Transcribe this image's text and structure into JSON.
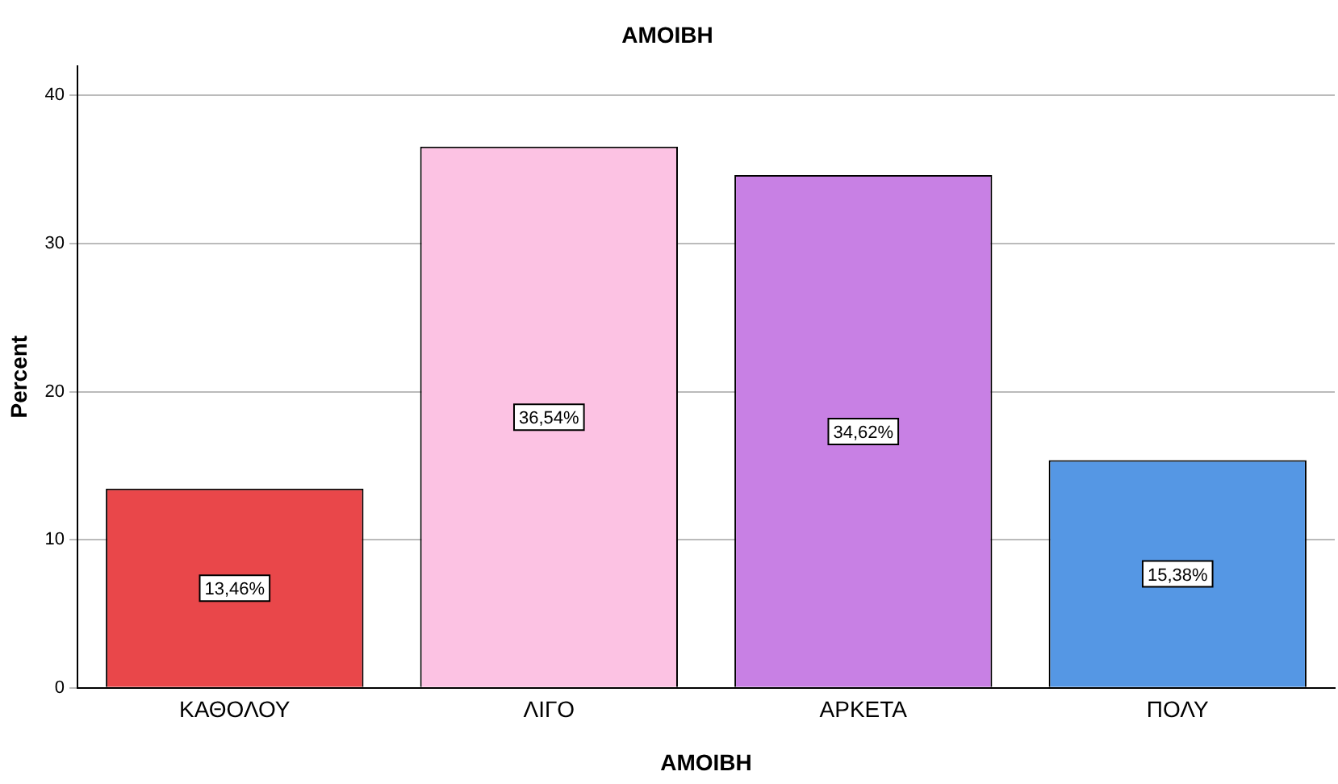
{
  "chart_data": {
    "type": "bar",
    "title": "ΑΜΟΙΒΗ",
    "xlabel": "ΑΜΟΙΒΗ",
    "ylabel": "Percent",
    "categories": [
      "ΚΑΘΟΛΟΥ",
      "ΛΙΓΟ",
      "ΑΡΚΕΤΑ",
      "ΠΟΛΥ"
    ],
    "values": [
      13.46,
      36.54,
      34.62,
      15.38
    ],
    "colors": [
      "#e9474a",
      "#fcc2e3",
      "#c880e4",
      "#5597e4"
    ],
    "value_labels": [
      "13,46%",
      "36,54%",
      "34,62%",
      "15,38%"
    ],
    "ylim": [
      0,
      42
    ],
    "yticks": [
      0,
      10,
      20,
      30,
      40
    ],
    "grid": "y",
    "legend": false
  }
}
